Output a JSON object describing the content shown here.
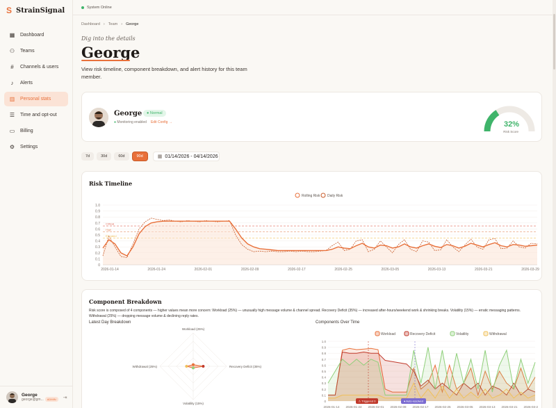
{
  "app": {
    "name": "StrainSignal",
    "status": "System Online"
  },
  "sidebar": {
    "items": [
      {
        "label": "Dashboard",
        "icon": "grid-icon"
      },
      {
        "label": "Teams",
        "icon": "users-icon"
      },
      {
        "label": "Channels & users",
        "icon": "hash-icon"
      },
      {
        "label": "Alerts",
        "icon": "bell-icon"
      },
      {
        "label": "Personal stats",
        "icon": "chart-icon"
      },
      {
        "label": "Time and opt-out",
        "icon": "sliders-icon"
      },
      {
        "label": "Billing",
        "icon": "card-icon"
      },
      {
        "label": "Settings",
        "icon": "gear-icon"
      }
    ],
    "active": "Personal stats",
    "user": {
      "name": "George",
      "email": "george@gm...",
      "role": "ADMIN"
    }
  },
  "breadcrumb": [
    "Dashboard",
    "Team",
    "George"
  ],
  "page": {
    "eyebrow": "Dig into the details",
    "title": "George",
    "description": "View risk timeline, component breakdown, and alert history for this team member."
  },
  "profile": {
    "name": "George",
    "status": "Normal",
    "monitoring": "Monitoring enabled",
    "edit": "Edit Config →",
    "risk_score": "32%",
    "risk_score_value": 0.32,
    "risk_label": "Risk Score"
  },
  "ranges": {
    "options": [
      "7d",
      "30d",
      "60d",
      "90d"
    ],
    "active": "90d",
    "date_range": "01/14/2026 - 04/14/2026"
  },
  "risk_timeline": {
    "title": "Risk Timeline",
    "legend": [
      "Rolling Risk",
      "Daily Risk"
    ],
    "thresholds": {
      "critical": "Critical",
      "high": "High",
      "elevated": "Elevated"
    },
    "colors": {
      "rolling": "#e8703a",
      "daily": "#c85a28",
      "critical": "#e06a5a"
    }
  },
  "chart_data": [
    {
      "type": "line",
      "title": "Risk Timeline",
      "x_ticks": [
        "2026-01-14",
        "2026-01-24",
        "2026-02-01",
        "2026-02-09",
        "2026-02-17",
        "2026-02-25",
        "2026-03-05",
        "2026-03-13",
        "2026-03-21",
        "2026-03-29"
      ],
      "y_ticks": [
        "0",
        "0.1",
        "0.2",
        "0.3",
        "0.4",
        "0.5",
        "0.6",
        "0.7",
        "0.8",
        "0.9",
        "1.0"
      ],
      "ylim": [
        0,
        1
      ],
      "thresholds": [
        0.65,
        0.55,
        0.45
      ],
      "series": [
        {
          "name": "Rolling Risk",
          "values": [
            0.28,
            0.42,
            0.35,
            0.2,
            0.15,
            0.3,
            0.52,
            0.64,
            0.7,
            0.72,
            0.73,
            0.73,
            0.73,
            0.73,
            0.73,
            0.73,
            0.73,
            0.73,
            0.73,
            0.73,
            0.73,
            0.73,
            0.6,
            0.45,
            0.35,
            0.3,
            0.27,
            0.26,
            0.25,
            0.24,
            0.24,
            0.24,
            0.24,
            0.24,
            0.24,
            0.24,
            0.24,
            0.24,
            0.26,
            0.3,
            0.28,
            0.27,
            0.32,
            0.36,
            0.3,
            0.28,
            0.33,
            0.32,
            0.28,
            0.3,
            0.35,
            0.3,
            0.28,
            0.32,
            0.35,
            0.31,
            0.29,
            0.34,
            0.32,
            0.28,
            0.31,
            0.36,
            0.33,
            0.3,
            0.34,
            0.37,
            0.32,
            0.3,
            0.34,
            0.33,
            0.31,
            0.32,
            0.33
          ]
        },
        {
          "name": "Daily Risk",
          "values": [
            0.15,
            0.48,
            0.3,
            0.14,
            0.12,
            0.35,
            0.6,
            0.72,
            0.78,
            0.76,
            0.74,
            0.75,
            0.73,
            0.72,
            0.74,
            0.73,
            0.72,
            0.74,
            0.73,
            0.72,
            0.73,
            0.74,
            0.5,
            0.34,
            0.26,
            0.22,
            0.23,
            0.22,
            0.23,
            0.22,
            0.22,
            0.23,
            0.22,
            0.23,
            0.22,
            0.22,
            0.23,
            0.24,
            0.32,
            0.38,
            0.24,
            0.26,
            0.4,
            0.42,
            0.22,
            0.26,
            0.4,
            0.3,
            0.2,
            0.34,
            0.42,
            0.26,
            0.22,
            0.4,
            0.38,
            0.24,
            0.25,
            0.42,
            0.3,
            0.22,
            0.33,
            0.43,
            0.3,
            0.26,
            0.42,
            0.44,
            0.27,
            0.28,
            0.4,
            0.3,
            0.28,
            0.36,
            0.35
          ]
        }
      ]
    },
    {
      "type": "radar",
      "title": "Latest Day Breakdown",
      "categories": [
        "Workload (25%)",
        "Recovery Deficit (35%)",
        "Volatility (15%)",
        "Withdrawal (25%)"
      ],
      "values": [
        0.05,
        0.3,
        0.05,
        0.2
      ]
    },
    {
      "type": "area",
      "title": "Components Over Time",
      "x_ticks": [
        "2026-01-14",
        "2026-01-24",
        "2026-02-01",
        "2026-02-09",
        "2026-02-17",
        "2026-02-25",
        "2026-03-05",
        "2026-03-13",
        "2026-03-21",
        "2026-03-29"
      ],
      "y_ticks": [
        "0",
        "0.1",
        "0.2",
        "0.3",
        "0.4",
        "0.5",
        "0.6",
        "0.7",
        "0.8",
        "0.9",
        "1.0"
      ],
      "ylim": [
        0,
        1
      ],
      "series": [
        {
          "name": "Workload",
          "values": [
            0.1,
            0.1,
            0.85,
            0.88,
            0.86,
            0.87,
            0.88,
            0.86,
            0.2,
            0.15,
            0.15,
            0.15,
            0.55,
            0.2,
            0.3,
            0.6,
            0.15,
            0.6,
            0.2,
            0.3,
            0.55,
            0.1,
            0.5,
            0.2,
            0.5,
            0.3,
            0.2,
            0.55,
            0.2,
            0.4
          ]
        },
        {
          "name": "Recovery Deficit",
          "values": [
            0.1,
            0.1,
            0.82,
            0.8,
            0.8,
            0.82,
            0.8,
            0.8,
            0.68,
            0.66,
            0.64,
            0.62,
            0.5,
            0.25,
            0.35,
            0.2,
            0.3,
            0.2,
            0.1,
            0.3,
            0.2,
            0.3,
            0.1,
            0.25,
            0.2,
            0.1,
            0.3,
            0.1,
            0.2,
            0.15
          ]
        },
        {
          "name": "Volatility",
          "values": [
            0.3,
            0.5,
            0.7,
            0.6,
            0.7,
            0.6,
            0.7,
            0.65,
            0.1,
            0.1,
            0.1,
            0.1,
            0.85,
            0.3,
            0.9,
            0.2,
            0.85,
            0.2,
            0.8,
            0.3,
            0.7,
            0.2,
            0.85,
            0.15,
            0.6,
            0.85,
            0.2,
            0.7,
            0.3,
            0.65
          ]
        },
        {
          "name": "Withdrawal",
          "values": [
            0.05,
            0.05,
            0.1,
            0.1,
            0.1,
            0.1,
            0.1,
            0.1,
            0.05,
            0.05,
            0.05,
            0.05,
            0.3,
            0.05,
            0.2,
            0.05,
            0.25,
            0.05,
            0.2,
            0.05,
            0.15,
            0.05,
            0.2,
            0.05,
            0.1,
            0.2,
            0.05,
            0.15,
            0.05,
            0.1
          ]
        }
      ],
      "annotations": [
        "⚠ Triggered 0",
        "● Auto-resolved"
      ]
    }
  ],
  "components": {
    "title": "Component Breakdown",
    "description": "Risk score is composed of 4 components — higher values mean more concern: Workload (25%) — unusually high message volume & channel spread. Recovery Deficit (35%) — increased after-hours/weekend work & shrinking breaks. Volatility (15%) — erratic messaging patterns. Withdrawal (25%) — dropping message volume & declining reply rates.",
    "left_title": "Latest Day Breakdown",
    "right_title": "Components Over Time",
    "legend": [
      "Workload",
      "Recovery Deficit",
      "Volatility",
      "Withdrawal"
    ],
    "colors": {
      "workload": "#e8703a",
      "recovery": "#c0392b",
      "volatility": "#8fcf7a",
      "withdrawal": "#f0c05a"
    }
  }
}
